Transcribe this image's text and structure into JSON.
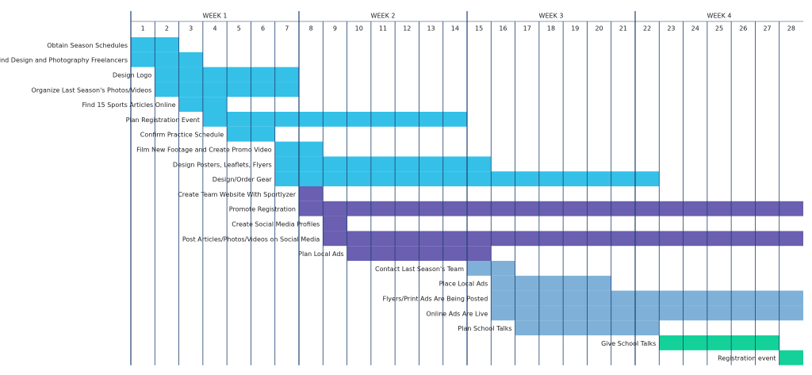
{
  "chart_data": {
    "type": "gantt",
    "weeks": [
      "WEEK 1",
      "WEEK 2",
      "WEEK 3",
      "WEEK 4"
    ],
    "days": [
      1,
      2,
      3,
      4,
      5,
      6,
      7,
      8,
      9,
      10,
      11,
      12,
      13,
      14,
      15,
      16,
      17,
      18,
      19,
      20,
      21,
      22,
      23,
      24,
      25,
      26,
      27,
      28
    ],
    "tasks": [
      {
        "name": "Obtain Season Schedules",
        "start": 1,
        "end": 2,
        "color": "#35c0e8"
      },
      {
        "name": "Find Design and Photography Freelancers",
        "start": 1,
        "end": 3,
        "color": "#35c0e8"
      },
      {
        "name": "Design Logo",
        "start": 2,
        "end": 7,
        "color": "#35c0e8"
      },
      {
        "name": "Organize Last Season's Photos/Videos",
        "start": 2,
        "end": 7,
        "color": "#35c0e8"
      },
      {
        "name": "Find 15 Sports Articles Online",
        "start": 3,
        "end": 4,
        "color": "#35c0e8"
      },
      {
        "name": "Plan Registration Event",
        "start": 4,
        "end": 14,
        "color": "#35c0e8"
      },
      {
        "name": "Confirm Practice Schedule",
        "start": 5,
        "end": 6,
        "color": "#35c0e8"
      },
      {
        "name": "Film New Footage and Create Promo Video",
        "start": 7,
        "end": 8,
        "color": "#35c0e8"
      },
      {
        "name": "Design Posters, Leaflets, Flyers",
        "start": 7,
        "end": 15,
        "color": "#35c0e8"
      },
      {
        "name": "Design/Order Gear",
        "start": 7,
        "end": 22,
        "color": "#35c0e8"
      },
      {
        "name": "Create Team Website With Sportlyzer",
        "start": 8,
        "end": 8,
        "color": "#6a5fb0"
      },
      {
        "name": "Promote Registration",
        "start": 8,
        "end": 28,
        "color": "#6a5fb0"
      },
      {
        "name": "Create Social Media Profiles",
        "start": 9,
        "end": 9,
        "color": "#6a5fb0"
      },
      {
        "name": "Post Articles/Photos/Videos on Social Media",
        "start": 9,
        "end": 28,
        "color": "#6a5fb0"
      },
      {
        "name": "Plan Local Ads",
        "start": 10,
        "end": 15,
        "color": "#6a5fb0"
      },
      {
        "name": "Contact Last Season's Team",
        "start": 15,
        "end": 16,
        "color": "#7fb1d8"
      },
      {
        "name": "Place Local Ads",
        "start": 16,
        "end": 20,
        "color": "#7fb1d8"
      },
      {
        "name": "Flyers/Print Ads Are Being Posted",
        "start": 16,
        "end": 28,
        "color": "#7fb1d8"
      },
      {
        "name": "Online Ads Are Live",
        "start": 16,
        "end": 28,
        "color": "#7fb1d8"
      },
      {
        "name": "Plan School Talks",
        "start": 17,
        "end": 22,
        "color": "#7fb1d8"
      },
      {
        "name": "Give School Talks",
        "start": 23,
        "end": 27,
        "color": "#14d19a"
      },
      {
        "name": "Registration event",
        "start": 28,
        "end": 28,
        "color": "#14d19a"
      }
    ]
  }
}
